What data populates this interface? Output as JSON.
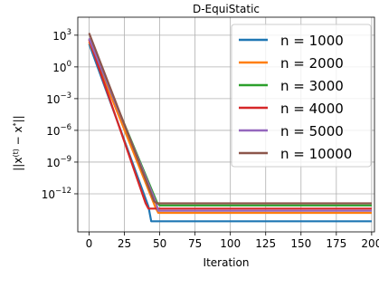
{
  "chart_data": {
    "type": "line",
    "title": "D-EquiStatic",
    "xlabel": "Iteration",
    "ylabel": "||x^(t) − x*||",
    "xlim": [
      -8,
      202
    ],
    "ylog": true,
    "ylim_log10": [
      -15.6,
      4.7
    ],
    "grid": true,
    "legend_position": "top-right",
    "x_ticks": [
      0,
      25,
      50,
      75,
      100,
      125,
      150,
      175,
      200
    ],
    "x_tick_labels": [
      "0",
      "25",
      "50",
      "75",
      "100",
      "125",
      "150",
      "175",
      "200"
    ],
    "y_ticks_log10": [
      3,
      0,
      -3,
      -6,
      -9,
      -12
    ],
    "y_tick_labels": [
      {
        "base": "10",
        "exp": "3"
      },
      {
        "base": "10",
        "exp": "0"
      },
      {
        "base": "10",
        "exp": "−3"
      },
      {
        "base": "10",
        "exp": "−6"
      },
      {
        "base": "10",
        "exp": "−9"
      },
      {
        "base": "10",
        "exp": "−12"
      }
    ],
    "series": [
      {
        "name": "n = 1000",
        "color": "#1f77b4",
        "points_log10": [
          [
            0,
            2.2
          ],
          [
            42,
            -13.2
          ],
          [
            44,
            -14.6
          ],
          [
            200,
            -14.6
          ]
        ]
      },
      {
        "name": "n = 2000",
        "color": "#ff7f0e",
        "points_log10": [
          [
            0,
            2.4
          ],
          [
            47,
            -13.3
          ],
          [
            49,
            -13.8
          ],
          [
            200,
            -13.8
          ]
        ]
      },
      {
        "name": "n = 3000",
        "color": "#2ca02c",
        "points_log10": [
          [
            0,
            2.6
          ],
          [
            48,
            -12.8
          ],
          [
            50,
            -13.1
          ],
          [
            200,
            -13.1
          ]
        ]
      },
      {
        "name": "n = 4000",
        "color": "#d62728",
        "points_log10": [
          [
            0,
            2.6
          ],
          [
            40,
            -12.9
          ],
          [
            42,
            -13.4
          ],
          [
            200,
            -13.4
          ]
        ]
      },
      {
        "name": "n = 5000",
        "color": "#9467bd",
        "points_log10": [
          [
            0,
            2.7
          ],
          [
            47,
            -12.7
          ],
          [
            49,
            -13.6
          ],
          [
            200,
            -13.6
          ]
        ]
      },
      {
        "name": "n = 10000",
        "color": "#8c564b",
        "points_log10": [
          [
            0,
            3.2
          ],
          [
            46,
            -12.7
          ],
          [
            48,
            -12.9
          ],
          [
            200,
            -12.9
          ]
        ]
      }
    ]
  }
}
